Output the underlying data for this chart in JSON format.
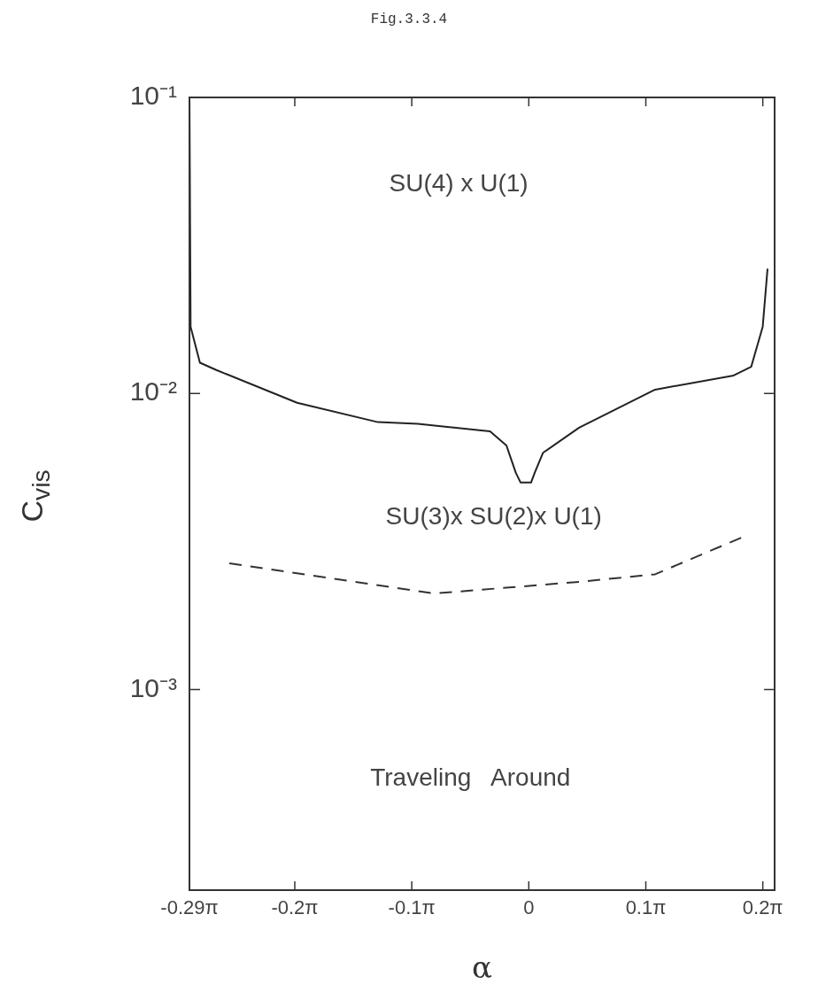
{
  "chart_data": {
    "type": "line",
    "title": "Fig.3.3.4",
    "xlabel": "α",
    "ylabel": "C$_{vis}$",
    "log": "y",
    "grid": false,
    "legend": false,
    "marker": "none",
    "xlim": [
      -0.9111,
      0.66
    ],
    "ylim": [
      0.00021,
      0.1
    ],
    "xticks": [
      {
        "value": -0.9111,
        "label": "-0.29π"
      },
      {
        "value": -0.6283,
        "label": "-0.2π"
      },
      {
        "value": -0.3142,
        "label": "-0.1π"
      },
      0,
      {
        "value": 0.3142,
        "label": "0.1π"
      },
      {
        "value": 0.6283,
        "label": "0.2π"
      }
    ],
    "yticks": [
      {
        "value": 0.001,
        "label": "10⁻³"
      },
      {
        "value": 0.01,
        "label": "10⁻²"
      },
      {
        "value": 0.1,
        "label": "10⁻¹"
      }
    ],
    "series": [
      {
        "color": "#222222",
        "line_style": "solid",
        "x": [
          -0.911,
          -0.908,
          -0.883,
          -0.839,
          -0.622,
          -0.405,
          -0.298,
          -0.104,
          -0.06,
          -0.035,
          -0.022,
          0.006,
          0.016,
          0.038,
          0.135,
          0.339,
          0.55,
          0.597,
          0.628,
          0.641
        ],
        "values": [
          0.1,
          0.0168,
          0.0127,
          0.012,
          0.0093,
          0.008,
          0.0079,
          0.00745,
          0.00667,
          0.0054,
          0.005,
          0.005,
          0.0054,
          0.0063,
          0.00766,
          0.0103,
          0.0115,
          0.0123,
          0.0168,
          0.0264
        ]
      },
      {
        "color": "#333333",
        "line_style": "dashed",
        "x": [
          -0.804,
          -0.254,
          0.135,
          0.339,
          0.581
        ],
        "values": [
          0.00267,
          0.00211,
          0.00231,
          0.00245,
          0.0033
        ]
      }
    ],
    "annotations": [
      "SU(4) x U(1)",
      "SU(3)x SU(2)x U(1)",
      "Traveling   Around"
    ]
  }
}
